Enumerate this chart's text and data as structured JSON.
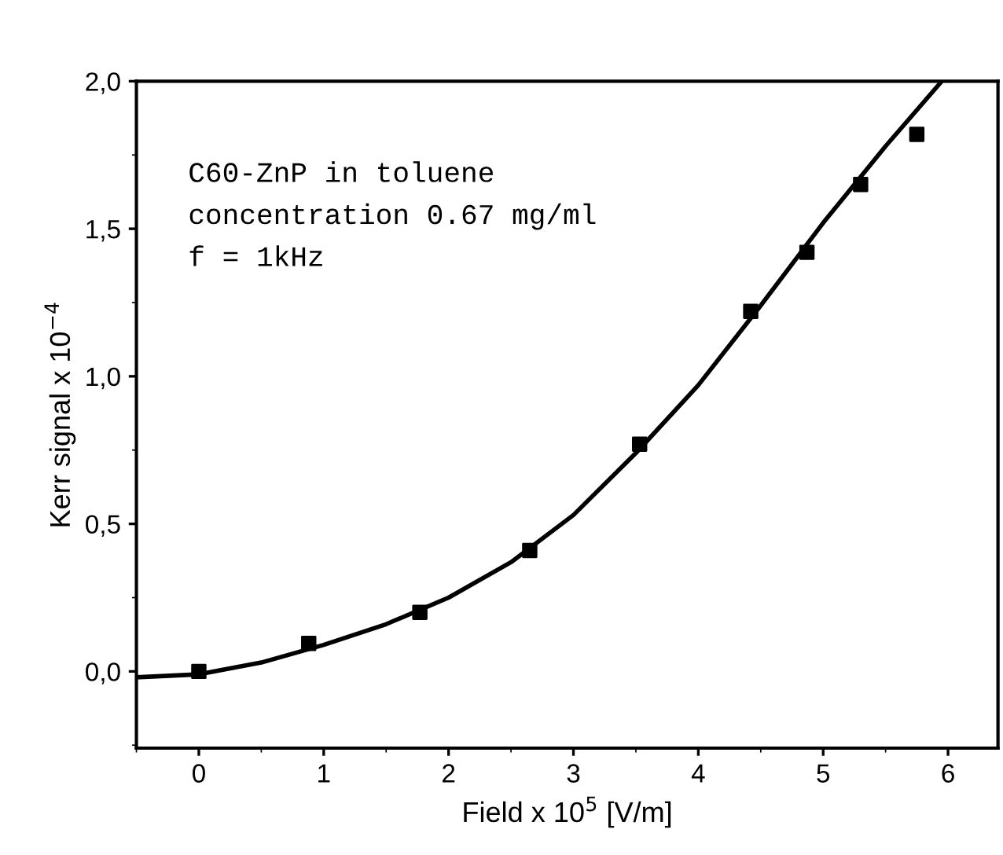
{
  "chart_data": {
    "type": "scatter",
    "xlabel": "Field x 10$^{5}$ [V/m]",
    "ylabel": "Kerr signal x 10$^{−4}$",
    "annotations": [
      "C60-ZnP in toluene",
      "concentration 0.67 mg/ml",
      "f = 1kHz"
    ],
    "xlim": [
      -0.5,
      6.4
    ],
    "ylim": [
      -0.26,
      2.0
    ],
    "xticks": [
      0,
      1,
      2,
      3,
      4,
      5,
      6
    ],
    "yticks": [
      {
        "value": 0,
        "label": "0,0"
      },
      {
        "value": 0.5,
        "label": "0,5"
      },
      {
        "value": 1,
        "label": "1,0"
      },
      {
        "value": 1.5,
        "label": "1,5"
      },
      {
        "value": 2,
        "label": "2,0"
      }
    ],
    "grid": false,
    "series": [
      {
        "color": "#000000",
        "marker": "square",
        "x": [
          0,
          0.88,
          1.77,
          2.65,
          3.53,
          4.42,
          4.87,
          5.3,
          5.75
        ],
        "values": [
          0,
          0.095,
          0.2,
          0.41,
          0.77,
          1.22,
          1.42,
          1.65,
          1.82
        ]
      },
      {
        "type": "line",
        "color": "#000000",
        "marker": "none",
        "line_style": "solid",
        "x": [
          -0.5,
          0,
          0.5,
          1,
          1.5,
          2,
          2.5,
          3,
          3.5,
          4,
          4.5,
          5,
          5.5,
          5.95
        ],
        "values": [
          -0.02,
          -0.01,
          0.03,
          0.09,
          0.16,
          0.25,
          0.37,
          0.53,
          0.74,
          0.97,
          1.24,
          1.52,
          1.78,
          2.0
        ]
      }
    ]
  }
}
